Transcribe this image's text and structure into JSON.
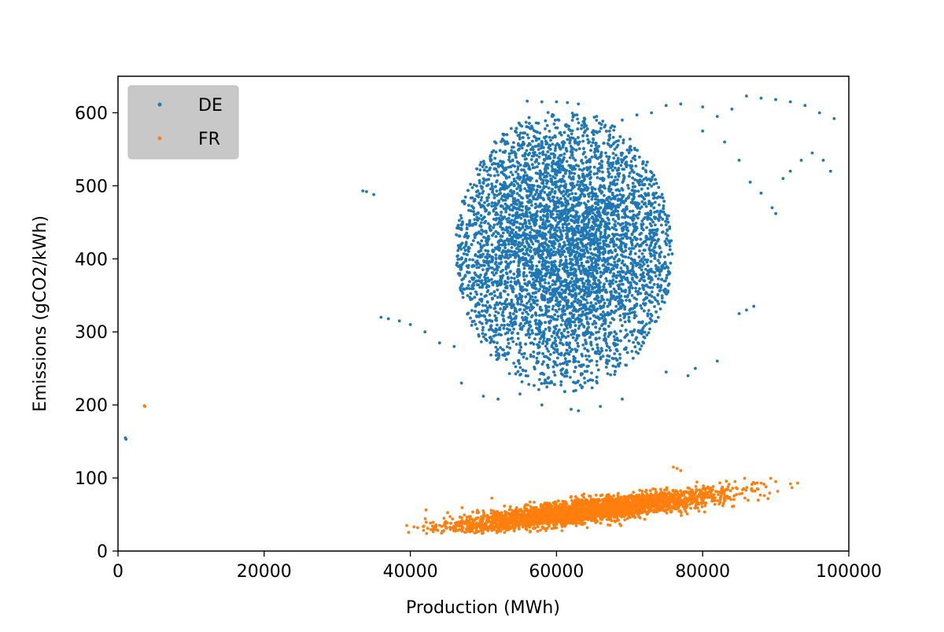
{
  "colors": {
    "de": "#1f77b4",
    "fr": "#ff7f0e",
    "axis": "#000000",
    "legend_bg": "#c8c8c8"
  },
  "chart_data": {
    "type": "scatter",
    "title": "",
    "xlabel": "Production (MWh)",
    "ylabel": "Emissions (gCO2/kWh)",
    "xlim": [
      0,
      100000
    ],
    "ylim": [
      0,
      650
    ],
    "xticks": [
      0,
      20000,
      40000,
      60000,
      80000,
      100000
    ],
    "xtick_labels": [
      "0",
      "20000",
      "40000",
      "60000",
      "80000",
      "100000"
    ],
    "yticks": [
      0,
      100,
      200,
      300,
      400,
      500,
      600
    ],
    "ytick_labels": [
      "0",
      "100",
      "200",
      "300",
      "400",
      "500",
      "600"
    ],
    "grid": false,
    "legend_position": "upper-left",
    "series": [
      {
        "name": "DE",
        "color": "#1f77b4",
        "outliers": [
          [
            1000,
            155
          ],
          [
            1100,
            153
          ],
          [
            33500,
            493
          ],
          [
            34000,
            492
          ],
          [
            35000,
            488
          ],
          [
            36000,
            320
          ],
          [
            37000,
            318
          ],
          [
            38500,
            315
          ],
          [
            40000,
            310
          ],
          [
            42000,
            300
          ],
          [
            44000,
            285
          ],
          [
            46000,
            280
          ],
          [
            47000,
            230
          ],
          [
            50000,
            212
          ],
          [
            52000,
            208
          ],
          [
            55000,
            215
          ],
          [
            58000,
            200
          ],
          [
            62000,
            194
          ],
          [
            63000,
            192
          ],
          [
            66000,
            198
          ],
          [
            69000,
            208
          ],
          [
            75000,
            245
          ],
          [
            78000,
            240
          ],
          [
            79000,
            250
          ],
          [
            82000,
            260
          ],
          [
            85000,
            325
          ],
          [
            86000,
            330
          ],
          [
            87000,
            335
          ],
          [
            82000,
            595
          ],
          [
            84000,
            605
          ],
          [
            86000,
            623
          ],
          [
            88000,
            620
          ],
          [
            90000,
            618
          ],
          [
            92000,
            615
          ],
          [
            94000,
            610
          ],
          [
            96000,
            600
          ],
          [
            98000,
            592
          ],
          [
            80000,
            608
          ],
          [
            77000,
            612
          ],
          [
            75000,
            610
          ],
          [
            73000,
            600
          ],
          [
            71000,
            597
          ],
          [
            69000,
            590
          ],
          [
            80000,
            575
          ],
          [
            83000,
            560
          ],
          [
            85000,
            535
          ],
          [
            86500,
            505
          ],
          [
            88000,
            490
          ],
          [
            89500,
            470
          ],
          [
            90000,
            462
          ],
          [
            91000,
            510
          ],
          [
            92000,
            520
          ],
          [
            93500,
            535
          ],
          [
            95000,
            545
          ],
          [
            96500,
            535
          ],
          [
            97500,
            520
          ],
          [
            56000,
            616
          ],
          [
            58000,
            615
          ],
          [
            60000,
            615
          ],
          [
            61500,
            614
          ],
          [
            63000,
            612
          ]
        ],
        "cluster": {
          "x_range": [
            34000,
            88000
          ],
          "y_range": [
            195,
            615
          ],
          "core_center": [
            61000,
            415
          ],
          "core_spread": [
            10500,
            105
          ]
        }
      },
      {
        "name": "FR",
        "color": "#ff7f0e",
        "outliers": [
          [
            3600,
            199
          ],
          [
            3700,
            198
          ],
          [
            39500,
            35
          ],
          [
            40500,
            33
          ],
          [
            41000,
            32
          ],
          [
            76000,
            115
          ],
          [
            76500,
            113
          ],
          [
            77000,
            110
          ],
          [
            88000,
            93
          ],
          [
            90000,
            95
          ],
          [
            92000,
            92
          ],
          [
            93000,
            93
          ]
        ],
        "cluster": {
          "x_range": [
            39500,
            93000
          ],
          "y_range": [
            24,
            115
          ],
          "core_center": [
            64000,
            55
          ],
          "core_spread": [
            10000,
            14
          ]
        }
      }
    ]
  }
}
